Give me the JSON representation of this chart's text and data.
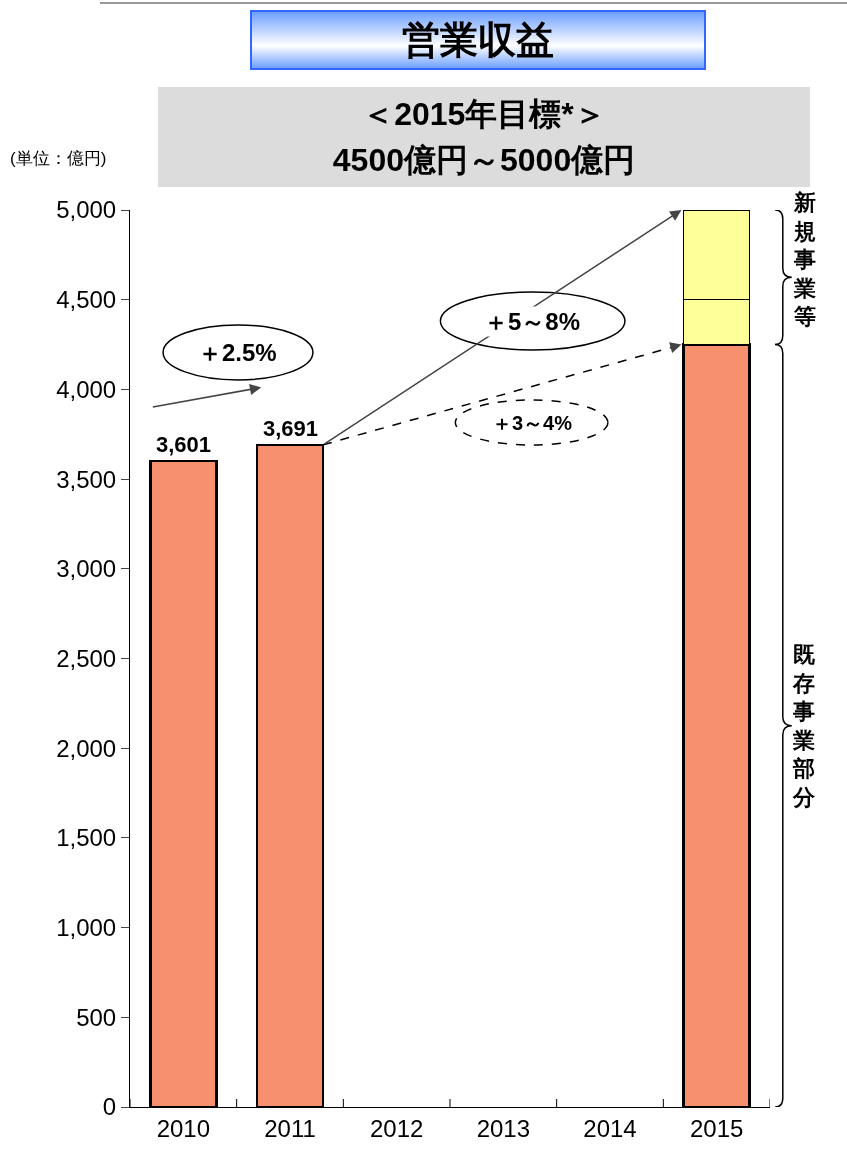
{
  "chart_data": {
    "type": "bar",
    "title": "営業収益",
    "subtitle": "＜2015年目標*＞\n4500億円～5000億円",
    "ylabel": "(単位：億円)",
    "categories": [
      "2010",
      "2011",
      "2012",
      "2013",
      "2014",
      "2015"
    ],
    "stacked": true,
    "series": [
      {
        "color": "#f7906e",
        "values": [
          3601,
          3691,
          null,
          null,
          null,
          4250
        ],
        "value_labels": [
          "3,601",
          "3,691",
          null,
          null,
          null,
          null
        ]
      },
      {
        "color": "#ffff99",
        "values": [
          null,
          null,
          null,
          null,
          null,
          250
        ]
      },
      {
        "color": "#ffff99",
        "values": [
          null,
          null,
          null,
          null,
          null,
          500
        ]
      }
    ],
    "ylim": [
      0,
      5000
    ],
    "yticks": [
      0,
      500,
      {
        "value": 1000,
        "label": "1,000"
      },
      {
        "value": 1500,
        "label": "1,500"
      },
      {
        "value": 2000,
        "label": "2,000"
      },
      {
        "value": 2500,
        "label": "2,500"
      },
      {
        "value": 3000,
        "label": "3,000"
      },
      {
        "value": 3500,
        "label": "3,500"
      },
      {
        "value": 4000,
        "label": "4,000"
      },
      {
        "value": 4500,
        "label": "4,500"
      },
      {
        "value": 5000,
        "label": "5,000"
      }
    ],
    "annotations": [
      "＋2.5%",
      "＋5～8%",
      "＋3～4%",
      "新規事業等",
      "既存事業部分"
    ],
    "grid": false
  }
}
